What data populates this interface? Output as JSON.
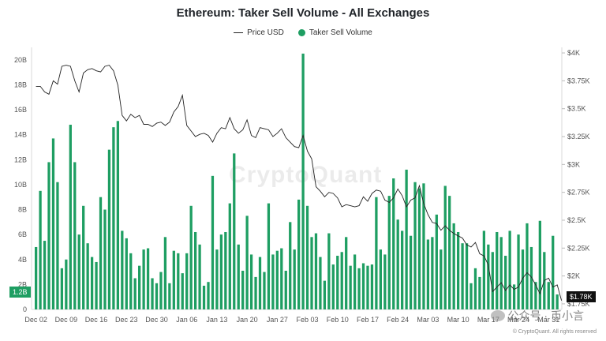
{
  "chart_data": {
    "type": "bar",
    "title": "Ethereum: Taker Sell Volume - All Exchanges",
    "legend": {
      "placement": "top-center",
      "items": [
        {
          "label": "Price USD",
          "style": "line",
          "color": "#222222"
        },
        {
          "label": "Taker Sell Volume",
          "style": "dot",
          "color": "#1e9e62"
        }
      ]
    },
    "x_ticks": [
      "Dec 02",
      "Dec 09",
      "Dec 16",
      "Dec 23",
      "Dec 30",
      "Jan 06",
      "Jan 13",
      "Jan 20",
      "Jan 27",
      "Feb 03",
      "Feb 10",
      "Feb 17",
      "Feb 24",
      "Mar 03",
      "Mar 10",
      "Mar 17",
      "Mar 24",
      "Mar 31"
    ],
    "y_left": {
      "ticks": [
        "0",
        "2B",
        "4B",
        "6B",
        "8B",
        "10B",
        "12B",
        "14B",
        "16B",
        "18B",
        "20B"
      ],
      "range": [
        0,
        21
      ]
    },
    "y_right": {
      "ticks": [
        "$1.75K",
        "$2K",
        "$2.25K",
        "$2.5K",
        "$2.75K",
        "$3K",
        "$3.25K",
        "$3.5K",
        "$3.75K",
        "$4K"
      ],
      "range": [
        1.7,
        4.05
      ],
      "unit": "USD thousands"
    },
    "series": [
      {
        "name": "Taker Sell Volume",
        "axis": "left",
        "unit": "B USD",
        "color": "#1e9e62",
        "values": [
          5,
          9.5,
          5.5,
          11.8,
          13.7,
          10.2,
          3.3,
          4,
          14.8,
          11.8,
          6,
          8.3,
          5.3,
          4.2,
          3.8,
          9,
          8,
          12.8,
          14.6,
          15.1,
          6.3,
          5.7,
          4.5,
          2.5,
          3.5,
          4.8,
          4.9,
          2.5,
          2.1,
          3,
          5.8,
          2.1,
          4.7,
          4.5,
          2.9,
          4.5,
          8.3,
          6.2,
          5.2,
          1.9,
          2.2,
          10.7,
          4.8,
          6,
          6.2,
          8.5,
          12.5,
          5.2,
          3.1,
          7.5,
          4.4,
          2.6,
          4.2,
          3,
          8.5,
          4.4,
          4.7,
          4.9,
          3.1,
          7,
          4.8,
          8.8,
          20.5,
          8.3,
          5.8,
          6.1,
          4.2,
          2.3,
          6.1,
          3.6,
          4.3,
          4.6,
          5.8,
          3.5,
          4.4,
          3.3,
          3.7,
          3.5,
          3.6,
          9,
          4.8,
          4.4,
          9.1,
          10.5,
          7.2,
          6.3,
          11.2,
          5.9,
          10.2,
          9.7,
          10.1,
          5.6,
          5.8,
          7.6,
          4.8,
          9.9,
          9.1,
          6.9,
          6.2,
          5.3,
          5.3,
          2.1,
          3.3,
          2.6,
          6.3,
          5.2,
          4.6,
          6.2,
          5.8,
          4.3,
          6.3,
          2,
          6,
          4.8,
          6.9,
          5,
          2.2,
          7.1,
          4.6,
          2.2,
          5.9,
          1.2
        ]
      },
      {
        "name": "Price USD",
        "axis": "right",
        "unit": "USD thousands",
        "color": "#222222",
        "values": [
          3.7,
          3.7,
          3.65,
          3.63,
          3.75,
          3.72,
          3.88,
          3.89,
          3.88,
          3.75,
          3.65,
          3.82,
          3.85,
          3.86,
          3.84,
          3.83,
          3.88,
          3.89,
          3.84,
          3.71,
          3.44,
          3.39,
          3.45,
          3.42,
          3.44,
          3.36,
          3.36,
          3.34,
          3.37,
          3.38,
          3.35,
          3.38,
          3.47,
          3.52,
          3.62,
          3.35,
          3.3,
          3.25,
          3.27,
          3.28,
          3.26,
          3.2,
          3.28,
          3.33,
          3.32,
          3.42,
          3.32,
          3.28,
          3.31,
          3.4,
          3.26,
          3.24,
          3.33,
          3.32,
          3.31,
          3.25,
          3.28,
          3.32,
          3.24,
          3.2,
          3.16,
          3.15,
          3.26,
          3.12,
          3.05,
          2.8,
          2.76,
          2.71,
          2.75,
          2.74,
          2.7,
          2.62,
          2.64,
          2.63,
          2.62,
          2.63,
          2.71,
          2.67,
          2.74,
          2.77,
          2.76,
          2.68,
          2.66,
          2.7,
          2.78,
          2.72,
          2.62,
          2.68,
          2.7,
          2.81,
          2.65,
          2.55,
          2.48,
          2.47,
          2.41,
          2.45,
          2.41,
          2.38,
          2.36,
          2.34,
          2.28,
          2.26,
          2.3,
          2.2,
          2.18,
          2.1,
          1.86,
          1.9,
          1.94,
          1.87,
          1.92,
          1.88,
          1.9,
          1.98,
          2.03,
          1.99,
          1.92,
          1.84,
          1.96,
          1.98,
          1.9,
          1.92,
          1.78
        ]
      }
    ],
    "current_labels": {
      "left": "1.2B",
      "right": "$1.78K"
    }
  },
  "watermark": "CryptoQuant",
  "credit": "© CryptoQuant. All rights reserved",
  "wechat_label": "公众号 · 币小言"
}
